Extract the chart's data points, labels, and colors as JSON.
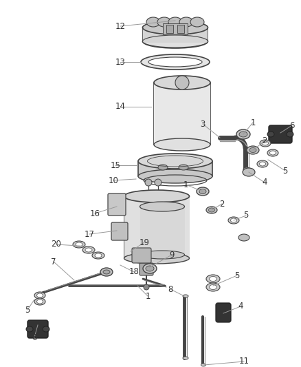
{
  "background_color": "#ffffff",
  "line_color": "#444444",
  "label_color": "#333333",
  "figsize": [
    4.38,
    5.33
  ],
  "dpi": 100
}
